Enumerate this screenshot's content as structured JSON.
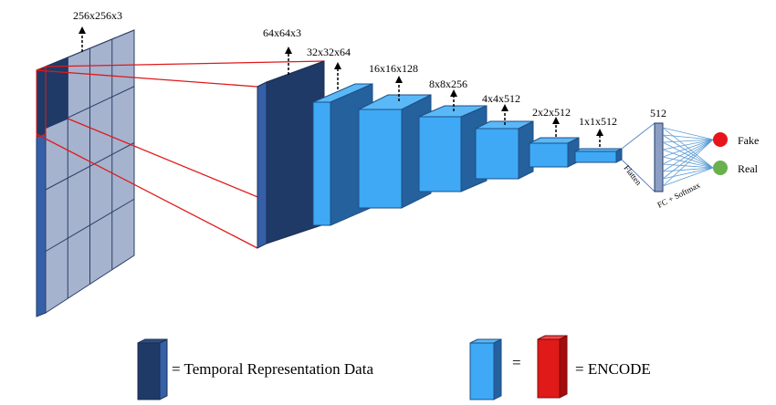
{
  "input": {
    "dims": "256x256x3"
  },
  "layers": [
    {
      "dims": "64x64x3"
    },
    {
      "dims": "32x32x64"
    },
    {
      "dims": "16x16x128"
    },
    {
      "dims": "8x8x256"
    },
    {
      "dims": "4x4x512"
    },
    {
      "dims": "2x2x512"
    },
    {
      "dims": "1x1x512"
    }
  ],
  "flatten": {
    "label": "Flatten"
  },
  "fc": {
    "size": "512",
    "label": "FC + Softmax"
  },
  "outputs": [
    {
      "label": "Fake",
      "color": "#e8141b"
    },
    {
      "label": "Real",
      "color": "#6ab04c"
    }
  ],
  "legend": {
    "temporal": "= Temporal Representation Data",
    "equals": "=",
    "encode": "= ENCODE"
  },
  "colors": {
    "dark_block": "#1f3a66",
    "light_front": "#3fa9f5",
    "light_top": "#5ab8f7",
    "light_side": "#25619d",
    "grid_fill": "#a5b3cf",
    "crop_lines": "#e01919",
    "encode": "#e01919"
  }
}
